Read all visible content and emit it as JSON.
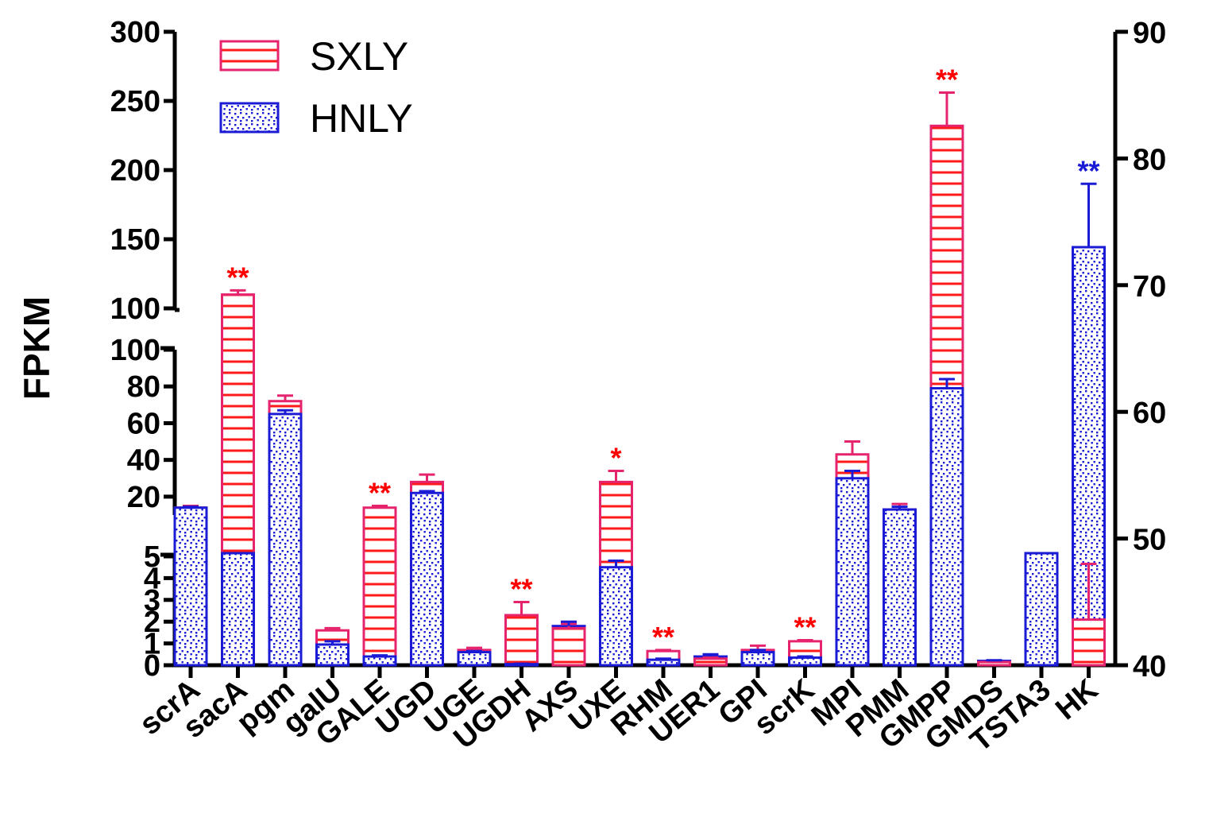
{
  "chart_data": {
    "type": "bar",
    "ylabel": "FPKM",
    "categories": [
      "scrA",
      "sacA",
      "pgm",
      "galU",
      "GALE",
      "UGD",
      "UGE",
      "UGDH",
      "AXS",
      "UXE",
      "RHM",
      "UER1",
      "GPI",
      "scrK",
      "MPI",
      "PMM",
      "GMPP",
      "GMDS",
      "TSTA3",
      "HK"
    ],
    "series": [
      {
        "name": "SXLY",
        "color": "#e6246e",
        "values": [
          14,
          110,
          72,
          1.6,
          14,
          28,
          0.7,
          2.3,
          1.7,
          28,
          0.65,
          0.3,
          0.7,
          1.1,
          43,
          13,
          232,
          0.15,
          8,
          43.6
        ],
        "errors": [
          1,
          3,
          3,
          0.1,
          1,
          4,
          0.1,
          0.6,
          0.2,
          6,
          0.05,
          0.05,
          0.2,
          0.05,
          7,
          3,
          24,
          0.03,
          0.3,
          4.4
        ],
        "axis": [
          "left",
          "left",
          "left",
          "left",
          "left",
          "left",
          "left",
          "left",
          "left",
          "left",
          "left",
          "left",
          "left",
          "left",
          "left",
          "left",
          "left",
          "left",
          "left",
          "right"
        ]
      },
      {
        "name": "HNLY",
        "color": "#1b1bd6",
        "values": [
          14,
          8,
          65,
          0.95,
          0.4,
          22,
          0.6,
          0.05,
          1.8,
          4.5,
          0.25,
          0.4,
          0.6,
          0.35,
          30,
          13,
          79,
          0.2,
          8,
          73
        ],
        "errors": [
          0.5,
          1,
          2,
          0.15,
          0.05,
          1,
          0.05,
          0.02,
          0.2,
          0.3,
          0.05,
          0.1,
          0.1,
          0.05,
          4,
          1.5,
          5,
          0.03,
          0.3,
          5
        ],
        "axis": [
          "left",
          "left",
          "left",
          "left",
          "left",
          "left",
          "left",
          "left",
          "left",
          "left",
          "left",
          "left",
          "left",
          "left",
          "left",
          "left",
          "left",
          "left",
          "left",
          "right"
        ]
      }
    ],
    "significance": [
      {
        "category": "sacA",
        "text": "**",
        "color": "#ff0000"
      },
      {
        "category": "GALE",
        "text": "**",
        "color": "#ff0000"
      },
      {
        "category": "UGDH",
        "text": "**",
        "color": "#ff0000"
      },
      {
        "category": "UXE",
        "text": "*",
        "color": "#ff0000"
      },
      {
        "category": "RHM",
        "text": "**",
        "color": "#ff0000"
      },
      {
        "category": "scrK",
        "text": "**",
        "color": "#ff0000"
      },
      {
        "category": "GMPP",
        "text": "**",
        "color": "#ff0000"
      },
      {
        "category": "HK",
        "text": "**",
        "color": "#1b1bd6"
      }
    ],
    "left_axis": {
      "segments": [
        {
          "ticks": [
            0,
            1,
            2,
            3,
            4,
            5
          ],
          "labels": [
            "0",
            "1",
            "2",
            "3",
            "4",
            "5"
          ],
          "range": [
            0,
            5
          ]
        },
        {
          "ticks": [
            20,
            40,
            60,
            80,
            100
          ],
          "labels": [
            "20",
            "40",
            "60",
            "80",
            "100"
          ],
          "range": [
            10,
            100
          ]
        },
        {
          "ticks": [
            100,
            150,
            200,
            250,
            300
          ],
          "labels": [
            "100",
            "150",
            "200",
            "250",
            "300"
          ],
          "range": [
            100,
            300
          ]
        }
      ]
    },
    "right_axis": {
      "range": [
        40,
        90
      ],
      "ticks": [
        40,
        50,
        60,
        70,
        80,
        90
      ],
      "labels": [
        "40",
        "50",
        "60",
        "70",
        "80",
        "90"
      ]
    },
    "legend_position": "top-left",
    "grid": false
  }
}
